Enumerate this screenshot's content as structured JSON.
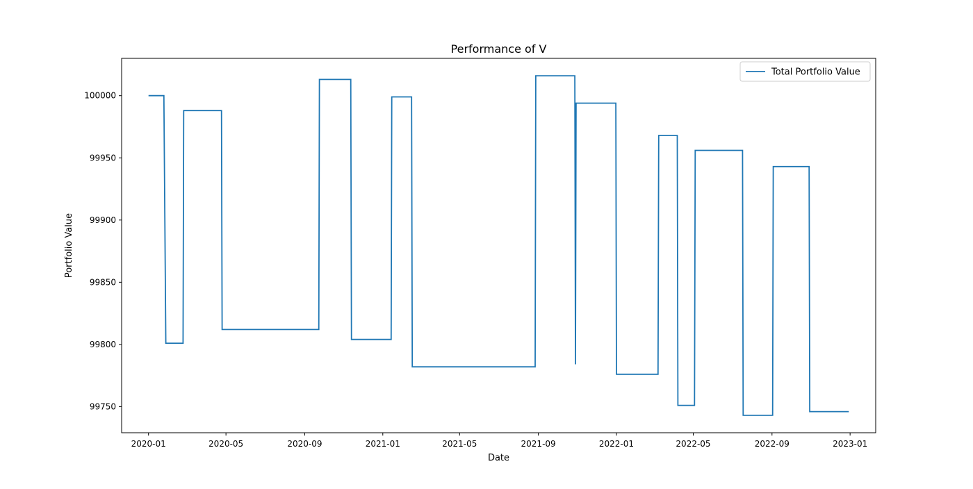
{
  "chart_data": {
    "type": "line",
    "title": "Performance of V",
    "xlabel": "Date",
    "ylabel": "Portfolio Value",
    "xlim": [
      "2019-11-20",
      "2023-02-10"
    ],
    "ylim": [
      99729,
      100030
    ],
    "grid": false,
    "legend_position": "top-right",
    "x_ticks": [
      "2020-01",
      "2020-05",
      "2020-09",
      "2021-01",
      "2021-05",
      "2021-09",
      "2022-01",
      "2022-05",
      "2022-09",
      "2023-01"
    ],
    "y_ticks": [
      99750,
      99800,
      99850,
      99900,
      99950,
      100000
    ],
    "colors": {
      "series": "#1f77b4"
    },
    "series": [
      {
        "name": "Total Portfolio Value",
        "points": [
          [
            "2020-01-01",
            100000
          ],
          [
            "2020-01-25",
            100000
          ],
          [
            "2020-01-28",
            99801
          ],
          [
            "2020-02-24",
            99801
          ],
          [
            "2020-02-25",
            99988
          ],
          [
            "2020-04-24",
            99988
          ],
          [
            "2020-04-25",
            99812
          ],
          [
            "2020-09-23",
            99812
          ],
          [
            "2020-09-24",
            100013
          ],
          [
            "2020-11-12",
            100013
          ],
          [
            "2020-11-13",
            99804
          ],
          [
            "2021-01-14",
            99804
          ],
          [
            "2021-01-15",
            99999
          ],
          [
            "2021-02-15",
            99999
          ],
          [
            "2021-02-16",
            99782
          ],
          [
            "2021-08-27",
            99782
          ],
          [
            "2021-08-28",
            100016
          ],
          [
            "2021-10-28",
            100016
          ],
          [
            "2021-10-29",
            99784
          ],
          [
            "2021-10-30",
            99994
          ],
          [
            "2021-12-31",
            99994
          ],
          [
            "2022-01-01",
            99776
          ],
          [
            "2022-03-07",
            99776
          ],
          [
            "2022-03-08",
            99968
          ],
          [
            "2022-04-06",
            99968
          ],
          [
            "2022-04-07",
            99751
          ],
          [
            "2022-05-03",
            99751
          ],
          [
            "2022-05-04",
            99956
          ],
          [
            "2022-07-17",
            99956
          ],
          [
            "2022-07-18",
            99743
          ],
          [
            "2022-09-02",
            99743
          ],
          [
            "2022-09-03",
            99943
          ],
          [
            "2022-10-29",
            99943
          ],
          [
            "2022-10-30",
            99746
          ],
          [
            "2022-12-30",
            99746
          ]
        ]
      }
    ]
  }
}
